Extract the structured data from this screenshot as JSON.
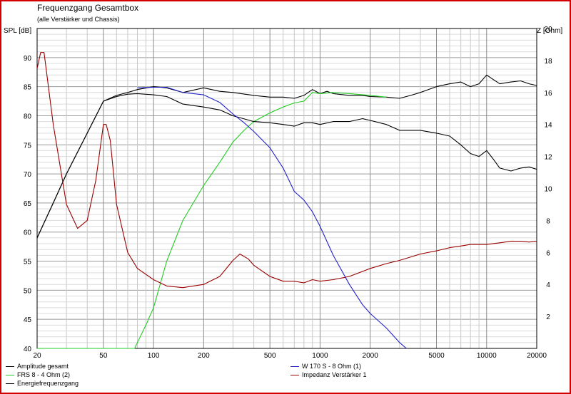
{
  "chart_data": {
    "type": "line",
    "title": "Frequenzgang Gesamtbox",
    "subtitle": "(alle Verstärker und Chassis)",
    "ylabel": "SPL [dB]",
    "y2label": "Z [Ohm]",
    "xlabel": "",
    "xscale": "log",
    "xlim": [
      20,
      20000
    ],
    "ylim": [
      40,
      95
    ],
    "y2lim": [
      0,
      20
    ],
    "grid": true,
    "x_ticks": [
      20,
      50,
      100,
      200,
      500,
      1000,
      2000,
      5000,
      10000,
      20000
    ],
    "y_ticks": [
      40,
      45,
      50,
      55,
      60,
      65,
      70,
      75,
      80,
      85,
      90
    ],
    "y2_ticks": [
      2,
      4,
      6,
      8,
      10,
      12,
      14,
      16,
      18,
      20
    ],
    "legend_position": "bottom",
    "series": [
      {
        "name": "Amplitude gesamt",
        "color": "#000000",
        "axis": "left",
        "x": [
          20,
          25,
          30,
          40,
          50,
          60,
          70,
          80,
          100,
          120,
          150,
          200,
          250,
          300,
          400,
          500,
          600,
          700,
          800,
          900,
          1000,
          1100,
          1200,
          1500,
          1800,
          2000,
          2500,
          3000,
          3500,
          4000,
          5000,
          6000,
          7000,
          8000,
          9000,
          10000,
          11000,
          12000,
          14000,
          16000,
          18000,
          20000
        ],
        "y": [
          59,
          65,
          70,
          77,
          82.5,
          83.5,
          84,
          84.5,
          85,
          84.8,
          84,
          84.8,
          84.2,
          84,
          83.5,
          83.2,
          83.2,
          83,
          83.5,
          84.5,
          83.8,
          84.2,
          83.8,
          83.5,
          83.5,
          83.3,
          83.2,
          83,
          83.5,
          84,
          85,
          85.5,
          85.8,
          85,
          85.5,
          87,
          86.2,
          85.5,
          85.8,
          86,
          85.5,
          85.2
        ]
      },
      {
        "name": "FRS 8 - 4 Ohm (2)",
        "color": "#22cc22",
        "axis": "left",
        "x": [
          20,
          50,
          77,
          80,
          90,
          100,
          120,
          150,
          200,
          250,
          300,
          350,
          400,
          500,
          600,
          700,
          800,
          900,
          1000,
          1200,
          1500,
          2000,
          2500
        ],
        "y": [
          40,
          40,
          40,
          41,
          44,
          47,
          55,
          62,
          68,
          72,
          75.5,
          77.5,
          79,
          80.5,
          81.5,
          82.2,
          82.5,
          84,
          83.8,
          84,
          83.8,
          83.5,
          83.2
        ]
      },
      {
        "name": "Energiefrequenzgang",
        "color": "#000000",
        "axis": "left",
        "x": [
          20,
          25,
          30,
          40,
          50,
          60,
          70,
          80,
          100,
          120,
          150,
          200,
          250,
          300,
          400,
          500,
          600,
          700,
          800,
          900,
          1000,
          1200,
          1500,
          1800,
          2000,
          2500,
          3000,
          3500,
          4000,
          5000,
          6000,
          7000,
          8000,
          9000,
          10000,
          11000,
          12000,
          14000,
          16000,
          18000,
          20000
        ],
        "y": [
          59,
          65,
          70,
          77,
          82.5,
          83.3,
          83.7,
          83.8,
          83.6,
          83.3,
          82,
          81.5,
          81,
          80,
          79,
          78.8,
          78.5,
          78.2,
          78.8,
          78.8,
          78.5,
          79,
          79,
          79.5,
          79.2,
          78.5,
          77.5,
          77.5,
          77.5,
          77,
          76.5,
          75,
          73.5,
          73,
          74,
          72.5,
          71,
          70.5,
          71,
          71.2,
          70.8
        ]
      },
      {
        "name": "W 170 S - 8 Ohm (1)",
        "color": "#2222cc",
        "axis": "left",
        "x": [
          80,
          100,
          120,
          150,
          200,
          250,
          300,
          350,
          400,
          500,
          600,
          700,
          800,
          900,
          1000,
          1200,
          1500,
          1800,
          2000,
          2500,
          3000,
          3300
        ],
        "y": [
          84.8,
          84.9,
          84.9,
          84,
          83.6,
          82.3,
          80.3,
          78.8,
          77.3,
          74.5,
          71,
          67,
          65.5,
          63.5,
          61,
          56,
          51,
          47.5,
          46,
          43.5,
          41,
          40
        ]
      },
      {
        "name": "Impedanz Verstärker 1",
        "color": "#990000",
        "axis": "right",
        "x": [
          20,
          21,
          22,
          25,
          30,
          35,
          40,
          45,
          50,
          52,
          55,
          60,
          70,
          80,
          100,
          120,
          150,
          200,
          250,
          300,
          330,
          370,
          400,
          500,
          600,
          700,
          800,
          900,
          1000,
          1200,
          1500,
          2000,
          2500,
          3000,
          4000,
          5000,
          6000,
          7000,
          8000,
          10000,
          12000,
          14000,
          16000,
          18000,
          20000
        ],
        "y": [
          17.5,
          18.5,
          18.5,
          14,
          9,
          7.5,
          8,
          10.5,
          14,
          14,
          13,
          9,
          6,
          5,
          4.3,
          3.9,
          3.8,
          4,
          4.5,
          5.5,
          5.9,
          5.6,
          5.2,
          4.5,
          4.2,
          4.2,
          4.1,
          4.3,
          4.2,
          4.3,
          4.5,
          5,
          5.3,
          5.5,
          5.9,
          6.1,
          6.3,
          6.4,
          6.5,
          6.5,
          6.6,
          6.7,
          6.7,
          6.65,
          6.7
        ]
      }
    ]
  }
}
